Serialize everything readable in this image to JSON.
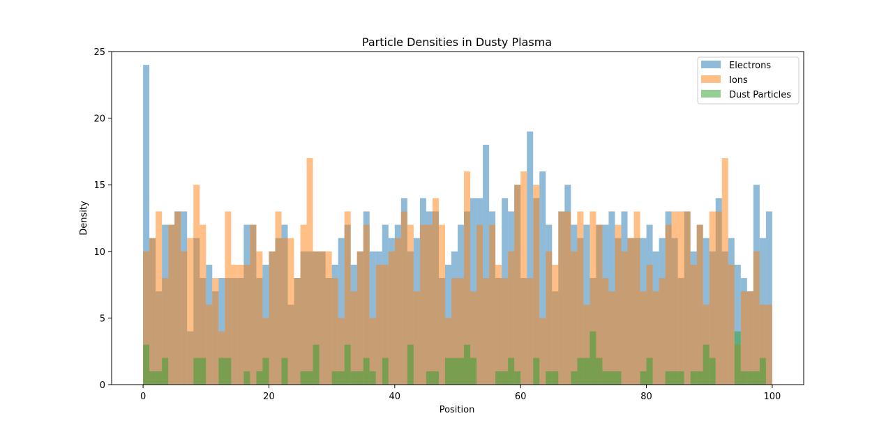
{
  "chart_data": {
    "type": "bar",
    "title": "Particle Densities in Dusty Plasma",
    "xlabel": "Position",
    "ylabel": "Density",
    "xlim": [
      -5,
      105
    ],
    "ylim": [
      0,
      25
    ],
    "x_ticks": [
      0,
      20,
      40,
      60,
      80,
      100
    ],
    "y_ticks": [
      0,
      5,
      10,
      15,
      20,
      25
    ],
    "x_tick_labels": [
      "0",
      "20",
      "40",
      "60",
      "80",
      "100"
    ],
    "y_tick_labels": [
      "0",
      "5",
      "10",
      "15",
      "20",
      "25"
    ],
    "bins": {
      "start": 0,
      "end": 100,
      "count": 100
    },
    "grid": false,
    "legend_position": "top-right",
    "series": [
      {
        "name": "Electrons",
        "color": "#1f77b4",
        "alpha": 0.5,
        "values": [
          24,
          11,
          7,
          12,
          12,
          13,
          13,
          4,
          11,
          8,
          9,
          7,
          8,
          8,
          8,
          8,
          12,
          12,
          8,
          9,
          10,
          11,
          12,
          6,
          8,
          10,
          10,
          10,
          10,
          8,
          9,
          11,
          12,
          9,
          10,
          13,
          10,
          10,
          12,
          11,
          12,
          14,
          10,
          11,
          14,
          13,
          13,
          8,
          9,
          10,
          12,
          13,
          14,
          14,
          18,
          13,
          8,
          14,
          13,
          15,
          8,
          19,
          14,
          16,
          12,
          7,
          13,
          15,
          12,
          11,
          12,
          8,
          12,
          12,
          13,
          11,
          13,
          11,
          11,
          11,
          12,
          10,
          11,
          13,
          11,
          8,
          13,
          10,
          12,
          11,
          10,
          14,
          10,
          11,
          9,
          8,
          7,
          15,
          11,
          13
        ]
      },
      {
        "name": "Ions",
        "color": "#ff7f0e",
        "alpha": 0.5,
        "values": [
          10,
          11,
          13,
          8,
          12,
          13,
          10,
          11,
          15,
          12,
          6,
          8,
          4,
          13,
          9,
          9,
          9,
          12,
          10,
          5,
          10,
          13,
          11,
          11,
          8,
          12,
          17,
          10,
          10,
          10,
          8,
          5,
          13,
          7,
          10,
          12,
          5,
          9,
          9,
          10,
          11,
          13,
          12,
          7,
          12,
          12,
          14,
          12,
          5,
          8,
          8,
          16,
          7,
          12,
          8,
          12,
          9,
          8,
          10,
          15,
          16,
          8,
          15,
          5,
          10,
          9,
          13,
          13,
          10,
          13,
          6,
          13,
          12,
          8,
          7,
          12,
          10,
          11,
          13,
          7,
          9,
          7,
          8,
          12,
          13,
          13,
          13,
          9,
          12,
          6,
          13,
          13,
          17,
          9,
          3,
          7,
          7,
          10,
          6,
          6
        ]
      },
      {
        "name": "Dust Particles",
        "color": "#2ca02c",
        "alpha": 0.5,
        "values": [
          3,
          1,
          1,
          2,
          0,
          0,
          0,
          0,
          2,
          2,
          0,
          0,
          2,
          2,
          0,
          0,
          1,
          0,
          1,
          2,
          0,
          0,
          2,
          0,
          0,
          1,
          1,
          3,
          0,
          0,
          1,
          1,
          3,
          1,
          1,
          2,
          1,
          0,
          2,
          0,
          0,
          0,
          3,
          0,
          0,
          1,
          1,
          0,
          2,
          2,
          2,
          3,
          2,
          0,
          0,
          0,
          1,
          1,
          2,
          1,
          0,
          0,
          2,
          0,
          1,
          1,
          0,
          0,
          1,
          2,
          2,
          4,
          2,
          1,
          1,
          1,
          0,
          0,
          0,
          1,
          2,
          0,
          0,
          1,
          1,
          1,
          0,
          1,
          1,
          3,
          2,
          0,
          0,
          0,
          4,
          1,
          1,
          1,
          2,
          0
        ]
      }
    ]
  }
}
